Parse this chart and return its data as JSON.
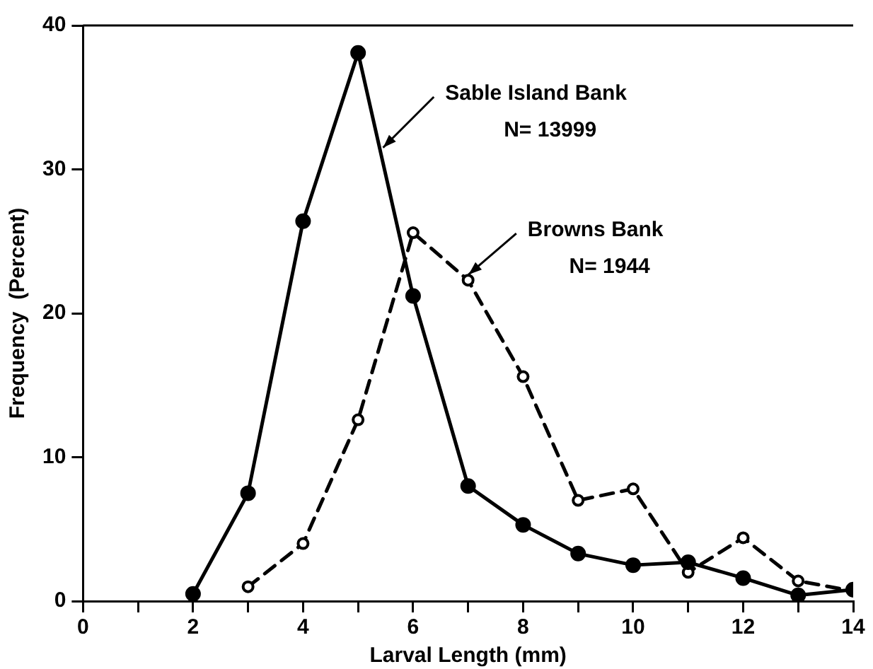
{
  "chart_data": {
    "type": "line",
    "xlabel": "Larval Length (mm)",
    "ylabel": "Frequency  (Percent)",
    "xlim": [
      0,
      14
    ],
    "xticks": [
      0,
      {
        "value": 1,
        "label": null
      },
      2,
      {
        "value": 3,
        "label": null
      },
      4,
      {
        "value": 5,
        "label": null
      },
      6,
      {
        "value": 7,
        "label": null
      },
      8,
      {
        "value": 9,
        "label": null
      },
      10,
      {
        "value": 11,
        "label": null
      },
      12,
      {
        "value": 13,
        "label": null
      },
      14
    ],
    "ylim": [
      0,
      40
    ],
    "yticks": [
      0,
      10,
      20,
      30,
      40
    ],
    "grid": false,
    "legend": false,
    "marker": "circle",
    "series": [
      {
        "color": "#000000",
        "line_style": "solid",
        "x": [
          2,
          3,
          4,
          5,
          6,
          7,
          8,
          9,
          10,
          11,
          12,
          13,
          14
        ],
        "values": [
          0.5,
          7.5,
          26.4,
          38.1,
          21.2,
          8.0,
          5.3,
          3.3,
          2.5,
          2.7,
          1.6,
          0.4,
          0.8
        ]
      },
      {
        "color": "#000000",
        "line_style": "dashed",
        "x": [
          3,
          4,
          5,
          6,
          7,
          8,
          9,
          10,
          11,
          12,
          13,
          14
        ],
        "values": [
          1.0,
          4.0,
          12.6,
          25.6,
          22.3,
          15.6,
          7.0,
          7.8,
          2.0,
          4.4,
          1.4,
          0.7
        ]
      }
    ],
    "annotations": [
      {
        "text": "Sable Island Bank\nN= 13999",
        "x": 5.4,
        "y": 31.3
      },
      {
        "text": "Browns Bank\nN= 1944",
        "x": 6.95,
        "y": 22.5
      }
    ]
  }
}
